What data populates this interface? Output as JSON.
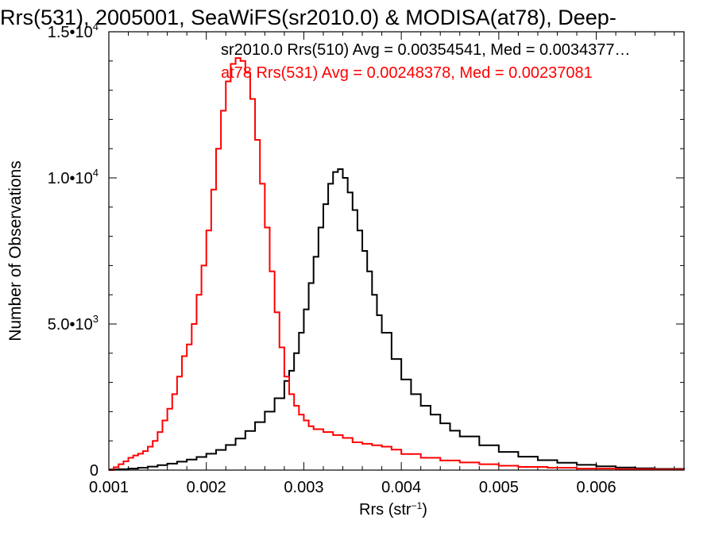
{
  "chart_data": {
    "type": "line",
    "title": "Rrs(531), 2005001, SeaWiFS(sr2010.0) & MODISA(at78), Deep-",
    "xlabel": "Rrs (str⁻¹)",
    "ylabel": "Number of Observations",
    "xlim": [
      0.001,
      0.0069
    ],
    "ylim": [
      0,
      15000
    ],
    "x_ticks": [
      {
        "value": 0.001,
        "label": "0.001"
      },
      {
        "value": 0.002,
        "label": "0.002"
      },
      {
        "value": 0.003,
        "label": "0.003"
      },
      {
        "value": 0.004,
        "label": "0.004"
      },
      {
        "value": 0.005,
        "label": "0.005"
      },
      {
        "value": 0.006,
        "label": "0.006"
      }
    ],
    "y_ticks": [
      {
        "value": 0,
        "mant": "0",
        "exp": ""
      },
      {
        "value": 5000,
        "mant": "5.0•10",
        "exp": "3"
      },
      {
        "value": 10000,
        "mant": "1.0•10",
        "exp": "4"
      },
      {
        "value": 15000,
        "mant": "1.5•10",
        "exp": "4"
      }
    ],
    "grid": false,
    "series": [
      {
        "name": "sr2010.0 Rrs(510) Avg = 0.00354541, Med = 0.0034377…",
        "color": "#000000",
        "step": "histogram",
        "x": [
          0.001,
          0.0011,
          0.0012,
          0.0013,
          0.0014,
          0.0015,
          0.0016,
          0.0017,
          0.0018,
          0.0019,
          0.002,
          0.0021,
          0.0022,
          0.0023,
          0.0024,
          0.0025,
          0.0026,
          0.0027,
          0.0028,
          0.00285,
          0.0029,
          0.00295,
          0.003,
          0.00305,
          0.0031,
          0.00315,
          0.0032,
          0.00325,
          0.0033,
          0.00335,
          0.0034,
          0.00345,
          0.0035,
          0.00355,
          0.0036,
          0.00365,
          0.0037,
          0.00375,
          0.0038,
          0.0039,
          0.004,
          0.0041,
          0.0042,
          0.0043,
          0.0044,
          0.0045,
          0.0046,
          0.0048,
          0.005,
          0.0052,
          0.0054,
          0.0056,
          0.0058,
          0.006,
          0.0062,
          0.0064,
          0.0066,
          0.0069
        ],
        "y": [
          20,
          30,
          50,
          80,
          120,
          170,
          220,
          290,
          360,
          450,
          560,
          690,
          860,
          1080,
          1340,
          1640,
          2000,
          2460,
          3050,
          3400,
          4000,
          4700,
          5500,
          6400,
          7300,
          8300,
          9100,
          9800,
          10200,
          10300,
          10000,
          9500,
          8900,
          8200,
          7500,
          6800,
          6000,
          5300,
          4700,
          3800,
          3100,
          2600,
          2200,
          1900,
          1600,
          1350,
          1150,
          850,
          620,
          460,
          340,
          250,
          180,
          130,
          90,
          60,
          40,
          20
        ]
      },
      {
        "name": "at78 Rrs(531) Avg = 0.00248378, Med = 0.00237081",
        "color": "#ff0000",
        "step": "histogram",
        "x": [
          0.001,
          0.00105,
          0.0011,
          0.00115,
          0.0012,
          0.00125,
          0.0013,
          0.00135,
          0.0014,
          0.00145,
          0.0015,
          0.00155,
          0.0016,
          0.00165,
          0.0017,
          0.00175,
          0.0018,
          0.00185,
          0.0019,
          0.00195,
          0.002,
          0.00205,
          0.0021,
          0.00215,
          0.0022,
          0.00225,
          0.0023,
          0.00235,
          0.0024,
          0.00245,
          0.0025,
          0.00255,
          0.0026,
          0.00265,
          0.0027,
          0.00275,
          0.0028,
          0.00285,
          0.0029,
          0.00295,
          0.003,
          0.00305,
          0.0031,
          0.0032,
          0.0033,
          0.0034,
          0.0035,
          0.0036,
          0.0037,
          0.0038,
          0.0039,
          0.004,
          0.0042,
          0.0044,
          0.0046,
          0.0048,
          0.005,
          0.0052,
          0.0055,
          0.0058,
          0.0062,
          0.0066,
          0.0069
        ],
        "y": [
          0,
          100,
          200,
          300,
          420,
          500,
          560,
          650,
          800,
          1000,
          1300,
          1700,
          2100,
          2600,
          3200,
          3900,
          4300,
          5000,
          6000,
          7000,
          8200,
          9600,
          11000,
          12300,
          13300,
          13900,
          14100,
          14000,
          13600,
          12700,
          11300,
          9800,
          8300,
          6800,
          5400,
          4200,
          3200,
          2600,
          2200,
          1900,
          1700,
          1500,
          1400,
          1300,
          1200,
          1100,
          950,
          900,
          850,
          800,
          700,
          550,
          420,
          330,
          260,
          200,
          150,
          110,
          80,
          50,
          30,
          20,
          10
        ]
      }
    ]
  }
}
